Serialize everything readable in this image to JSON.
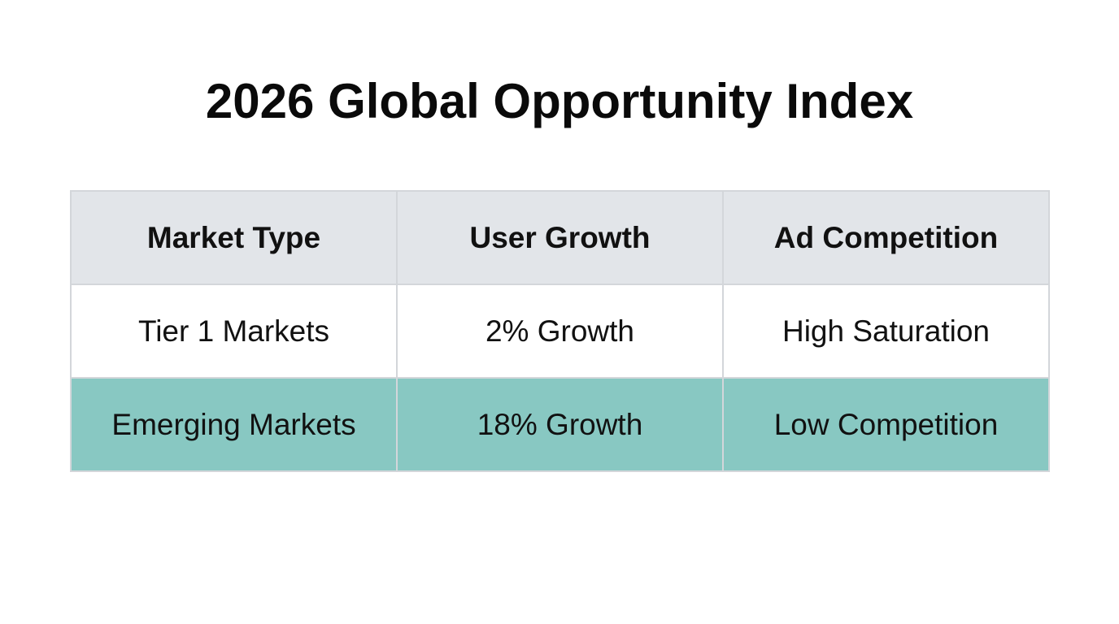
{
  "title": "2026 Global Opportunity Index",
  "table": {
    "headers": [
      "Market Type",
      "User Growth",
      "Ad Competition"
    ],
    "rows": [
      [
        "Tier 1 Markets",
        "2% Growth",
        "High Saturation"
      ],
      [
        "Emerging Markets",
        "18% Growth",
        "Low Competition"
      ]
    ]
  },
  "colors": {
    "header_bg": "#e2e5e9",
    "highlight_row_bg": "#88c8c2",
    "border": "#d3d6da"
  }
}
